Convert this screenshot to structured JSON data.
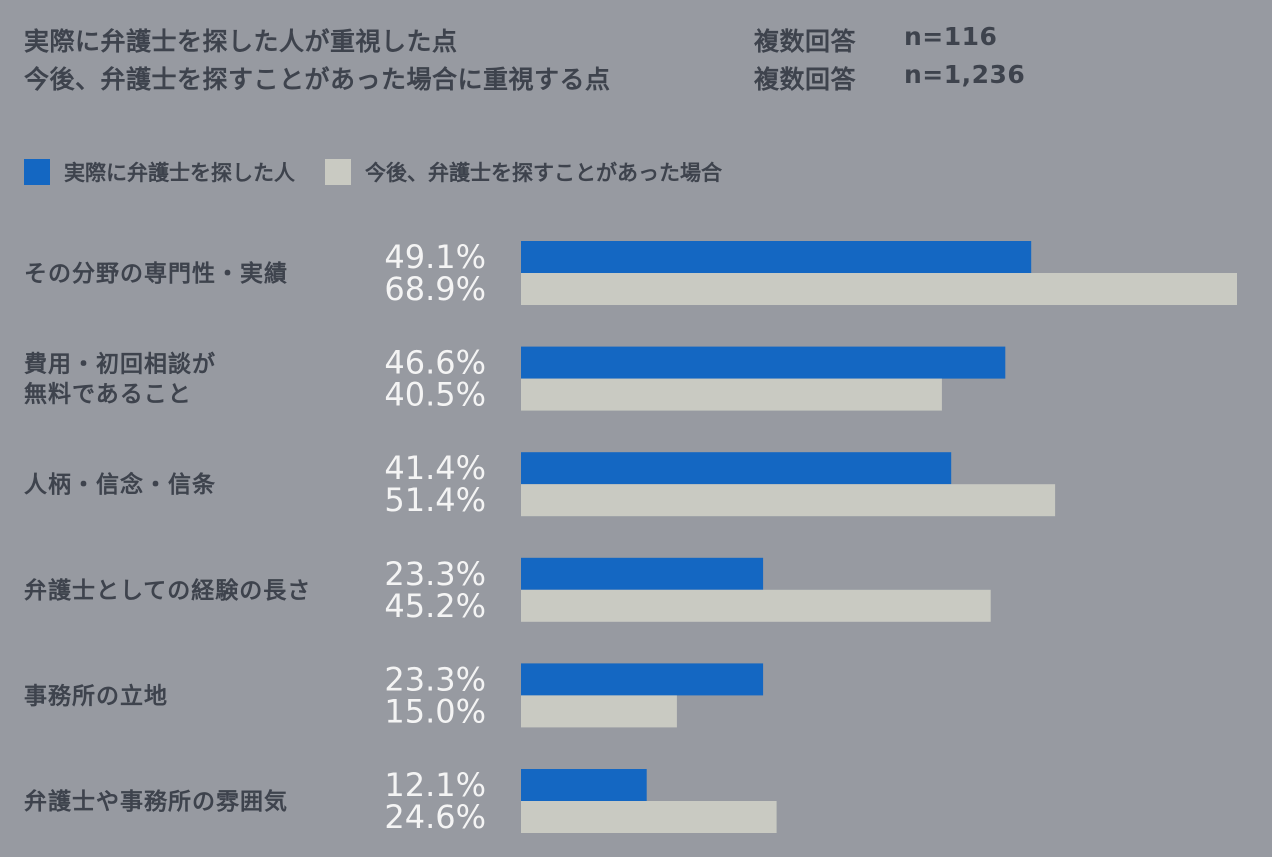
{
  "header": {
    "line1": {
      "title": "実際に弁護士を探した人が重視した点",
      "note": "複数回答",
      "n": "n=116"
    },
    "line2": {
      "title": "今後、弁護士を探すことがあった場合に重視する点",
      "note": "複数回答",
      "n": "n=1,236"
    }
  },
  "colors": {
    "background": "#979aa1",
    "series1": "#1467c2",
    "series2": "#c9cac2",
    "text_dark": "#3e434d",
    "value_text": "#f4f4f4"
  },
  "chart_data": {
    "type": "bar",
    "orientation": "horizontal",
    "title": "",
    "xlabel": "",
    "ylabel": "",
    "xlim": [
      0,
      68.9
    ],
    "grid": false,
    "legend_position": "top-left",
    "categories": [
      [
        "その分野の専門性・実績"
      ],
      [
        "費用・初回相談が",
        "無料であること"
      ],
      [
        "人柄・信念・信条"
      ],
      [
        "弁護士としての経験の長さ"
      ],
      [
        "事務所の立地"
      ],
      [
        "弁護士や事務所の雰囲気"
      ]
    ],
    "series": [
      {
        "name": "実際に弁護士を探した人",
        "color": "#1467c2",
        "values": [
          49.1,
          46.6,
          41.4,
          23.3,
          23.3,
          12.1
        ],
        "labels": [
          "49.1%",
          "46.6%",
          "41.4%",
          "23.3%",
          "23.3%",
          "12.1%"
        ]
      },
      {
        "name": "今後、弁護士を探すことがあった場合",
        "color": "#c9cac2",
        "values": [
          68.9,
          40.5,
          51.4,
          45.2,
          15.0,
          24.6
        ],
        "labels": [
          "68.9%",
          "40.5%",
          "51.4%",
          "45.2%",
          "15.0%",
          "24.6%"
        ]
      }
    ]
  }
}
